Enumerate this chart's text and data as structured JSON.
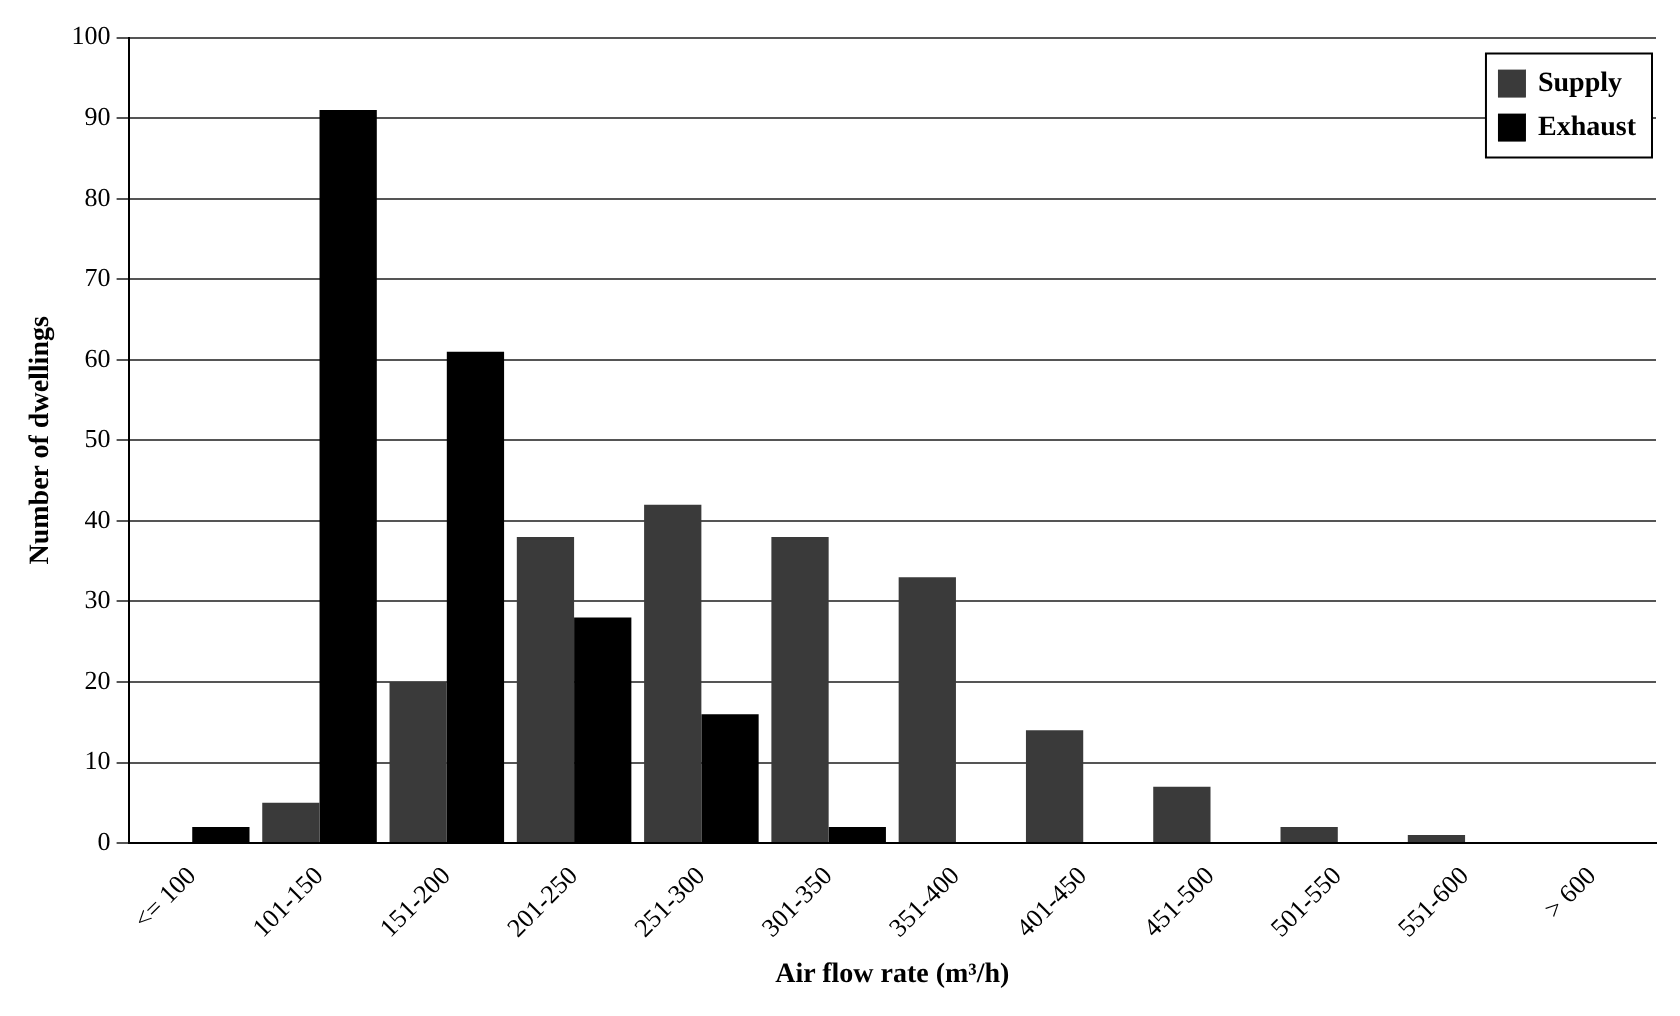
{
  "chart_data": {
    "type": "bar",
    "xlabel": "Air flow rate (m³/h)",
    "ylabel": "Number of dwellings",
    "categories": [
      "<= 100",
      "101-150",
      "151-200",
      "201-250",
      "251-300",
      "301-350",
      "351-400",
      "401-450",
      "451-500",
      "501-550",
      "551-600",
      "> 600"
    ],
    "series": [
      {
        "name": "Supply",
        "color": "#3a3a3a",
        "values": [
          0,
          5,
          20,
          38,
          42,
          38,
          33,
          14,
          7,
          2,
          1,
          0
        ]
      },
      {
        "name": "Exhaust",
        "color": "#000000",
        "values": [
          2,
          91,
          61,
          28,
          16,
          2,
          0,
          0,
          0,
          0,
          0,
          0
        ]
      }
    ],
    "ylim": [
      0,
      100
    ],
    "yticks": [
      0,
      10,
      20,
      30,
      40,
      50,
      60,
      70,
      80,
      90,
      100
    ],
    "grid": "y",
    "legend": "top right"
  }
}
